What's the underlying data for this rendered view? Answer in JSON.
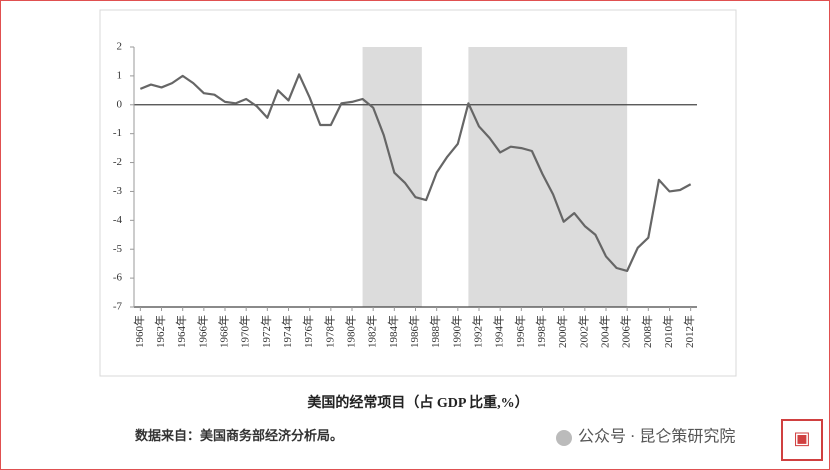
{
  "chart_data": {
    "type": "line",
    "title": "美国的经常项目（占 GDP 比重,%）",
    "source": "数据来自：美国商务部经济分析局。",
    "watermark": "公众号 · 昆仑策研究院",
    "x": [
      1960,
      1961,
      1962,
      1963,
      1964,
      1965,
      1966,
      1967,
      1968,
      1969,
      1970,
      1971,
      1972,
      1973,
      1974,
      1975,
      1976,
      1977,
      1978,
      1979,
      1980,
      1981,
      1982,
      1983,
      1984,
      1985,
      1986,
      1987,
      1988,
      1989,
      1990,
      1991,
      1992,
      1993,
      1994,
      1995,
      1996,
      1997,
      1998,
      1999,
      2000,
      2001,
      2002,
      2003,
      2004,
      2005,
      2006,
      2007,
      2008,
      2009,
      2010,
      2011,
      2012
    ],
    "series": [
      {
        "color": "#666666",
        "values": [
          0.55,
          0.7,
          0.6,
          0.75,
          1.0,
          0.75,
          0.4,
          0.35,
          0.1,
          0.05,
          0.2,
          -0.05,
          -0.45,
          0.5,
          0.15,
          1.05,
          0.25,
          -0.7,
          -0.7,
          0.05,
          0.1,
          0.2,
          -0.1,
          -1.05,
          -2.35,
          -2.7,
          -3.2,
          -3.3,
          -2.35,
          -1.8,
          -1.35,
          0.05,
          -0.75,
          -1.15,
          -1.65,
          -1.45,
          -1.5,
          -1.6,
          -2.4,
          -3.1,
          -4.05,
          -3.75,
          -4.2,
          -4.5,
          -5.25,
          -5.65,
          -5.75,
          -4.95,
          -4.6,
          -2.6,
          -3.0,
          -2.95,
          -2.75
        ]
      }
    ],
    "shaded": [
      [
        1981,
        1986.6
      ],
      [
        1991,
        2006
      ]
    ],
    "shade_color": "#dcdcdc",
    "xlim": [
      1959.4,
      2012.6
    ],
    "xticks": [
      {
        "value": 1960,
        "label": "1960年"
      },
      {
        "value": 1962,
        "label": "1962年"
      },
      {
        "value": 1964,
        "label": "1964年"
      },
      {
        "value": 1966,
        "label": "1966年"
      },
      {
        "value": 1968,
        "label": "1968年"
      },
      {
        "value": 1970,
        "label": "1970年"
      },
      {
        "value": 1972,
        "label": "1972年"
      },
      {
        "value": 1974,
        "label": "1974年"
      },
      {
        "value": 1976,
        "label": "1976年"
      },
      {
        "value": 1978,
        "label": "1978年"
      },
      {
        "value": 1980,
        "label": "1980年"
      },
      {
        "value": 1982,
        "label": "1982年"
      },
      {
        "value": 1984,
        "label": "1984年"
      },
      {
        "value": 1986,
        "label": "1986年"
      },
      {
        "value": 1988,
        "label": "1988年"
      },
      {
        "value": 1990,
        "label": "1990年"
      },
      {
        "value": 1992,
        "label": "1992年"
      },
      {
        "value": 1994,
        "label": "1994年"
      },
      {
        "value": 1996,
        "label": "1996年"
      },
      {
        "value": 1998,
        "label": "1998年"
      },
      {
        "value": 2000,
        "label": "2000年"
      },
      {
        "value": 2002,
        "label": "2002年"
      },
      {
        "value": 2004,
        "label": "2004年"
      },
      {
        "value": 2006,
        "label": "2006年"
      },
      {
        "value": 2008,
        "label": "2008年"
      },
      {
        "value": 2010,
        "label": "2010年"
      },
      {
        "value": 2012,
        "label": "2012年"
      }
    ],
    "ylim": [
      -7,
      2
    ],
    "yticks": [
      2,
      1,
      0,
      -1,
      -2,
      -3,
      -4,
      -5,
      -6,
      -7
    ],
    "grid": false
  }
}
